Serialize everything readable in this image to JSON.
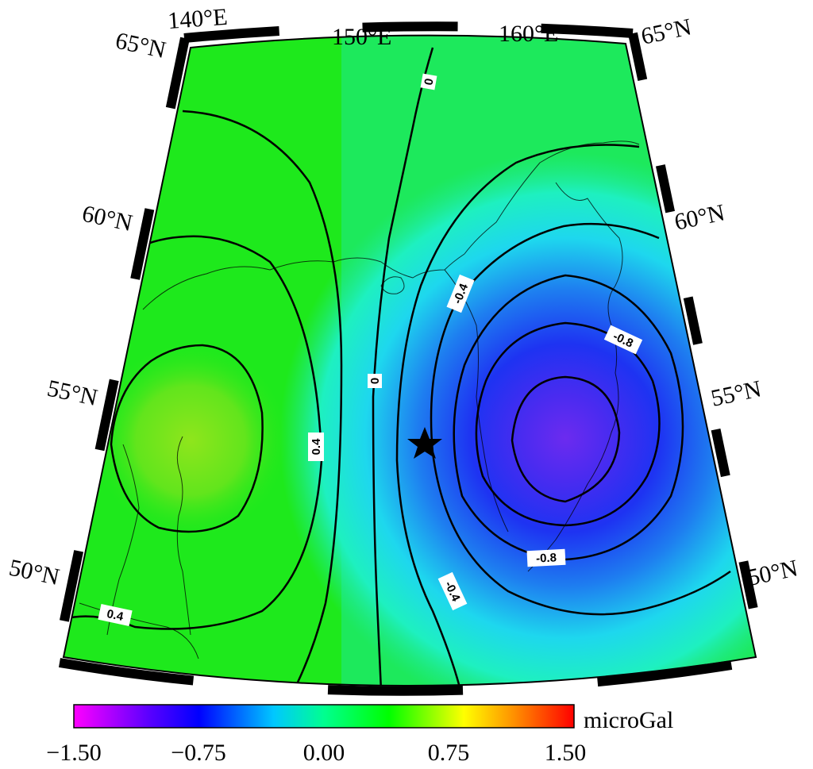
{
  "map": {
    "graticule_labels": {
      "lon_140": "140°E",
      "lon_150": "150°E",
      "lon_160": "160°E",
      "lat_65_left": "65°N",
      "lat_65_right": "65°N",
      "lat_60_left": "60°N",
      "lat_60_right": "60°N",
      "lat_55_left": "55°N",
      "lat_55_right": "55°N",
      "lat_50_left": "50°N",
      "lat_50_right": "50°N"
    },
    "contour_labels": {
      "c0_top": "0",
      "c0_mid": "0",
      "cpos_04_center": "0.4",
      "cpos_04_lowerleft": "0.4",
      "cneg_04_upper": "-0.4",
      "cneg_04_lower": "-0.4",
      "cneg_08_upper": "-0.8",
      "cneg_08_lower": "-0.8"
    },
    "colors": {
      "field_green": "#1ee91c",
      "field_positive_peak": "#8fe51c",
      "field_cyan": "#1ef0ef",
      "field_blue": "#1e33f2",
      "field_negative_peak": "#6c2bef",
      "contour_line": "#000000",
      "frame_black": "#000000"
    },
    "icons": {
      "epicenter": "star-icon"
    }
  },
  "colorbar": {
    "unit": "microGal",
    "ticks": [
      "−1.50",
      "−0.75",
      "0.00",
      "0.75",
      "1.50"
    ],
    "range": [
      -1.5,
      1.5
    ],
    "colors": [
      "#ff00ff",
      "#5a00ff",
      "#0000ff",
      "#00ffff",
      "#00ff00",
      "#ffff00",
      "#ff8000",
      "#ff0000"
    ]
  }
}
